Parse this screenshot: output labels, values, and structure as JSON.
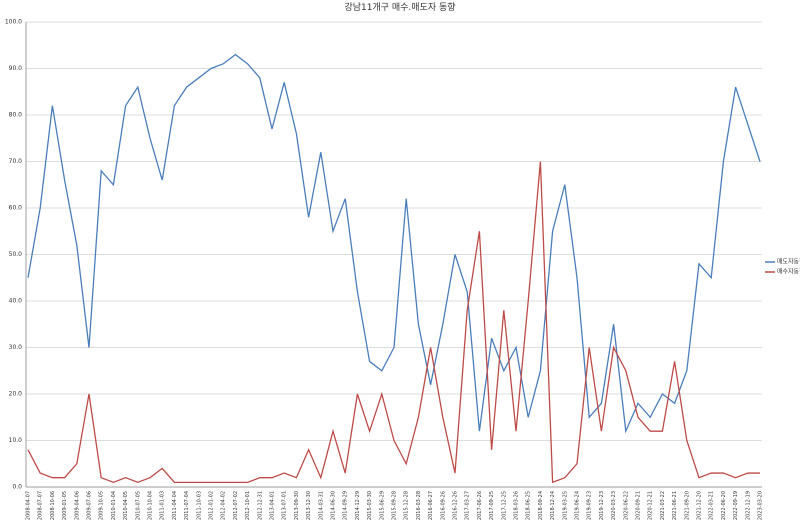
{
  "chart_data": {
    "type": "line",
    "title": "강남11개구 매수.매도자 동향",
    "categories": [
      "2008-04-07",
      "2008-07-07",
      "2008-10-06",
      "2009-01-05",
      "2009-04-06",
      "2009-07-06",
      "2009-10-05",
      "2010-01-04",
      "2010-04-05",
      "2010-07-05",
      "2010-10-04",
      "2011-01-03",
      "2011-04-04",
      "2011-07-04",
      "2011-10-03",
      "2012-01-02",
      "2012-04-02",
      "2012-07-02",
      "2012-10-01",
      "2012-12-31",
      "2013-04-01",
      "2013-07-01",
      "2013-09-30",
      "2013-12-30",
      "2014-03-31",
      "2014-06-30",
      "2014-09-29",
      "2014-12-29",
      "2015-03-30",
      "2015-06-29",
      "2015-09-28",
      "2015-12-28",
      "2016-03-28",
      "2016-06-27",
      "2016-09-26",
      "2016-12-26",
      "2017-03-27",
      "2017-06-26",
      "2017-09-25",
      "2017-12-25",
      "2018-03-26",
      "2018-06-25",
      "2018-09-24",
      "2018-12-24",
      "2019-03-25",
      "2019-06-24",
      "2019-09-23",
      "2019-12-23",
      "2020-03-23",
      "2020-06-22",
      "2020-09-21",
      "2020-12-21",
      "2021-03-22",
      "2021-06-21",
      "2021-09-20",
      "2021-12-20",
      "2022-03-21",
      "2022-06-20",
      "2022-09-19",
      "2022-12-19",
      "2023-03-20"
    ],
    "series": [
      {
        "name": "매도자동향",
        "color": "#4a7ebb",
        "values": [
          45,
          60,
          82,
          66,
          52,
          30,
          68,
          65,
          82,
          86,
          75,
          66,
          82,
          86,
          88,
          90,
          91,
          93,
          91,
          88,
          77,
          87,
          76,
          58,
          72,
          55,
          62,
          42,
          27,
          25,
          30,
          62,
          35,
          22,
          35,
          50,
          42,
          12,
          32,
          25,
          30,
          15,
          25,
          55,
          65,
          45,
          15,
          18,
          35,
          12,
          18,
          15,
          20,
          18,
          25,
          48,
          45,
          70,
          86,
          78,
          70
        ]
      },
      {
        "name": "매수자동향",
        "color": "#be4b48",
        "values": [
          8,
          3,
          2,
          2,
          5,
          20,
          2,
          1,
          2,
          1,
          2,
          4,
          1,
          1,
          1,
          1,
          1,
          1,
          1,
          2,
          2,
          3,
          2,
          8,
          2,
          12,
          3,
          20,
          12,
          20,
          10,
          5,
          15,
          30,
          15,
          3,
          38,
          55,
          8,
          38,
          12,
          40,
          70,
          1,
          2,
          5,
          30,
          12,
          30,
          25,
          15,
          12,
          12,
          27,
          10,
          2,
          3,
          3,
          2,
          3,
          3
        ]
      }
    ],
    "ylim": [
      0,
      100
    ],
    "yticks": [
      {
        "value": 0,
        "label": "0.0"
      },
      {
        "value": 10,
        "label": "10.0"
      },
      {
        "value": 20,
        "label": "20.0"
      },
      {
        "value": 30,
        "label": "30.0"
      },
      {
        "value": 40,
        "label": "40.0"
      },
      {
        "value": 50,
        "label": "50.0"
      },
      {
        "value": 60,
        "label": "60.0"
      },
      {
        "value": 70,
        "label": "70.0"
      },
      {
        "value": 80,
        "label": "80.0"
      },
      {
        "value": 90,
        "label": "90.0"
      },
      {
        "value": 100,
        "label": "100.0"
      }
    ],
    "grid": true,
    "legend": "right"
  }
}
